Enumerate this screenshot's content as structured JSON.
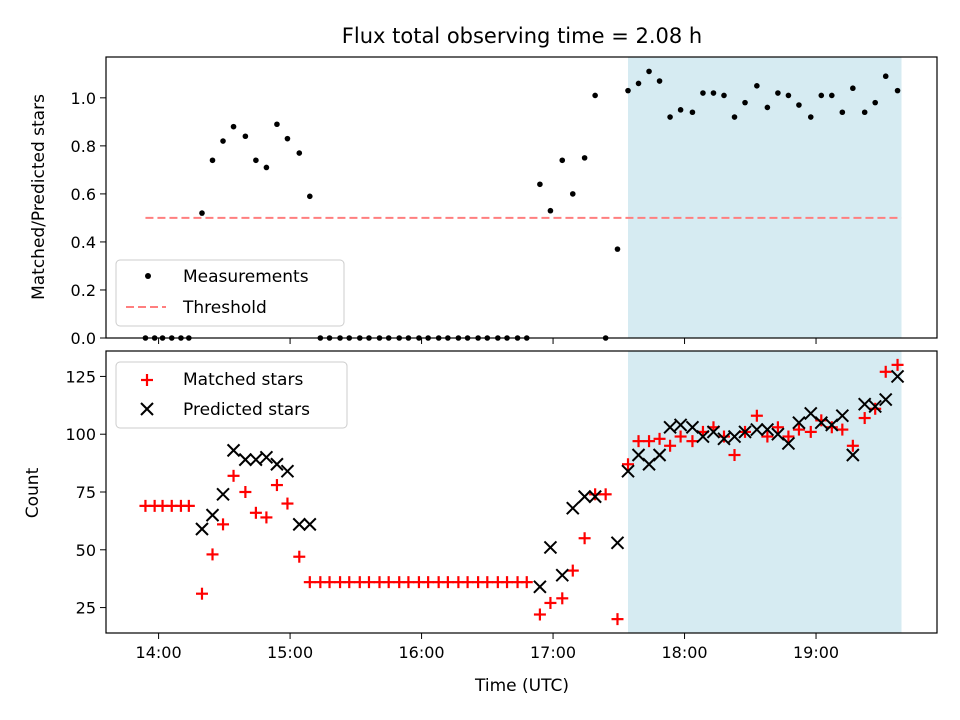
{
  "chart_data": [
    {
      "type": "scatter",
      "title": "Flux total observing time = 2.08 h",
      "xlabel": "",
      "ylabel": "Matched/Predicted stars",
      "ylim": [
        0,
        1.17
      ],
      "xlim_hours": [
        13.6,
        19.92
      ],
      "yticks": [
        "0.0",
        "0.2",
        "0.4",
        "0.6",
        "0.8",
        "1.0"
      ],
      "highlight_span_hours": [
        17.57,
        19.65
      ],
      "highlight_color": "#add8e6",
      "legend": {
        "placement": "lower-left",
        "entries": [
          "Measurements",
          "Threshold"
        ]
      },
      "threshold": {
        "name": "Threshold",
        "value": 0.5,
        "x_range_hours": [
          13.9,
          19.65
        ],
        "color": "#ff7f7f",
        "style": "dashed"
      },
      "series": [
        {
          "name": "Measurements",
          "marker": "dot",
          "color": "#000000",
          "points": [
            [
              13.9,
              0
            ],
            [
              13.97,
              0
            ],
            [
              14.03,
              0
            ],
            [
              14.1,
              0
            ],
            [
              14.17,
              0
            ],
            [
              14.23,
              0
            ],
            [
              14.33,
              0.52
            ],
            [
              14.41,
              0.74
            ],
            [
              14.49,
              0.82
            ],
            [
              14.57,
              0.88
            ],
            [
              14.66,
              0.84
            ],
            [
              14.74,
              0.74
            ],
            [
              14.82,
              0.71
            ],
            [
              14.9,
              0.89
            ],
            [
              14.98,
              0.83
            ],
            [
              15.07,
              0.77
            ],
            [
              15.15,
              0.59
            ],
            [
              15.23,
              0
            ],
            [
              15.3,
              0
            ],
            [
              15.38,
              0
            ],
            [
              15.45,
              0
            ],
            [
              15.53,
              0
            ],
            [
              15.6,
              0
            ],
            [
              15.68,
              0
            ],
            [
              15.75,
              0
            ],
            [
              15.83,
              0
            ],
            [
              15.9,
              0
            ],
            [
              15.98,
              0
            ],
            [
              16.05,
              0
            ],
            [
              16.13,
              0
            ],
            [
              16.2,
              0
            ],
            [
              16.28,
              0
            ],
            [
              16.35,
              0
            ],
            [
              16.43,
              0
            ],
            [
              16.5,
              0
            ],
            [
              16.58,
              0
            ],
            [
              16.65,
              0
            ],
            [
              16.73,
              0
            ],
            [
              16.8,
              0
            ],
            [
              16.9,
              0.64
            ],
            [
              16.98,
              0.53
            ],
            [
              17.07,
              0.74
            ],
            [
              17.15,
              0.6
            ],
            [
              17.24,
              0.75
            ],
            [
              17.32,
              1.01
            ],
            [
              17.4,
              0
            ],
            [
              17.49,
              0.37
            ],
            [
              17.57,
              1.03
            ],
            [
              17.65,
              1.06
            ],
            [
              17.73,
              1.11
            ],
            [
              17.81,
              1.07
            ],
            [
              17.89,
              0.92
            ],
            [
              17.97,
              0.95
            ],
            [
              18.06,
              0.94
            ],
            [
              18.14,
              1.02
            ],
            [
              18.22,
              1.02
            ],
            [
              18.3,
              1.01
            ],
            [
              18.38,
              0.92
            ],
            [
              18.46,
              0.98
            ],
            [
              18.55,
              1.05
            ],
            [
              18.63,
              0.96
            ],
            [
              18.71,
              1.02
            ],
            [
              18.79,
              1.01
            ],
            [
              18.87,
              0.97
            ],
            [
              18.96,
              0.92
            ],
            [
              19.04,
              1.01
            ],
            [
              19.12,
              1.01
            ],
            [
              19.2,
              0.94
            ],
            [
              19.28,
              1.04
            ],
            [
              19.37,
              0.94
            ],
            [
              19.45,
              0.98
            ],
            [
              19.53,
              1.09
            ],
            [
              19.62,
              1.03
            ]
          ]
        }
      ]
    },
    {
      "type": "scatter",
      "title": "",
      "xlabel": "Time (UTC)",
      "ylabel": "Count",
      "ylim": [
        14,
        136
      ],
      "xlim_hours": [
        13.6,
        19.92
      ],
      "yticks": [
        "25",
        "50",
        "75",
        "100",
        "125"
      ],
      "xticks": [
        "14:00",
        "15:00",
        "16:00",
        "17:00",
        "18:00",
        "19:00"
      ],
      "highlight_span_hours": [
        17.57,
        19.65
      ],
      "highlight_color": "#add8e6",
      "legend": {
        "placement": "upper-left",
        "entries": [
          "Matched stars",
          "Predicted stars"
        ]
      },
      "series": [
        {
          "name": "Matched stars",
          "marker": "plus",
          "color": "#ff0000",
          "points": [
            [
              13.9,
              69
            ],
            [
              13.97,
              69
            ],
            [
              14.03,
              69
            ],
            [
              14.1,
              69
            ],
            [
              14.17,
              69
            ],
            [
              14.23,
              69
            ],
            [
              14.33,
              31
            ],
            [
              14.41,
              48
            ],
            [
              14.49,
              61
            ],
            [
              14.57,
              82
            ],
            [
              14.66,
              75
            ],
            [
              14.74,
              66
            ],
            [
              14.82,
              64
            ],
            [
              14.9,
              78
            ],
            [
              14.98,
              70
            ],
            [
              15.07,
              47
            ],
            [
              15.15,
              36
            ],
            [
              15.23,
              36
            ],
            [
              15.3,
              36
            ],
            [
              15.38,
              36
            ],
            [
              15.45,
              36
            ],
            [
              15.53,
              36
            ],
            [
              15.6,
              36
            ],
            [
              15.68,
              36
            ],
            [
              15.75,
              36
            ],
            [
              15.83,
              36
            ],
            [
              15.9,
              36
            ],
            [
              15.98,
              36
            ],
            [
              16.05,
              36
            ],
            [
              16.13,
              36
            ],
            [
              16.2,
              36
            ],
            [
              16.28,
              36
            ],
            [
              16.35,
              36
            ],
            [
              16.43,
              36
            ],
            [
              16.5,
              36
            ],
            [
              16.58,
              36
            ],
            [
              16.65,
              36
            ],
            [
              16.73,
              36
            ],
            [
              16.8,
              36
            ],
            [
              16.9,
              22
            ],
            [
              16.98,
              27
            ],
            [
              17.07,
              29
            ],
            [
              17.15,
              41
            ],
            [
              17.24,
              55
            ],
            [
              17.32,
              74
            ],
            [
              17.4,
              74
            ],
            [
              17.49,
              20
            ],
            [
              17.57,
              87
            ],
            [
              17.65,
              97
            ],
            [
              17.73,
              97
            ],
            [
              17.81,
              98
            ],
            [
              17.89,
              95
            ],
            [
              17.97,
              99
            ],
            [
              18.06,
              97
            ],
            [
              18.14,
              101
            ],
            [
              18.22,
              103
            ],
            [
              18.3,
              99
            ],
            [
              18.38,
              91
            ],
            [
              18.46,
              101
            ],
            [
              18.55,
              108
            ],
            [
              18.63,
              99
            ],
            [
              18.71,
              103
            ],
            [
              18.79,
              99
            ],
            [
              18.87,
              102
            ],
            [
              18.96,
              101
            ],
            [
              19.04,
              106
            ],
            [
              19.12,
              103
            ],
            [
              19.2,
              102
            ],
            [
              19.28,
              95
            ],
            [
              19.37,
              107
            ],
            [
              19.45,
              111
            ],
            [
              19.53,
              127
            ],
            [
              19.62,
              130
            ]
          ]
        },
        {
          "name": "Predicted stars",
          "marker": "x",
          "color": "#000000",
          "points": [
            [
              14.33,
              59
            ],
            [
              14.41,
              65
            ],
            [
              14.49,
              74
            ],
            [
              14.57,
              93
            ],
            [
              14.66,
              89
            ],
            [
              14.74,
              89
            ],
            [
              14.82,
              90
            ],
            [
              14.9,
              87
            ],
            [
              14.98,
              84
            ],
            [
              15.07,
              61
            ],
            [
              15.15,
              61
            ],
            [
              16.9,
              34
            ],
            [
              16.98,
              51
            ],
            [
              17.07,
              39
            ],
            [
              17.15,
              68
            ],
            [
              17.24,
              73
            ],
            [
              17.32,
              73
            ],
            [
              17.49,
              53
            ],
            [
              17.57,
              84
            ],
            [
              17.65,
              91
            ],
            [
              17.73,
              87
            ],
            [
              17.81,
              91
            ],
            [
              17.89,
              103
            ],
            [
              17.97,
              104
            ],
            [
              18.06,
              103
            ],
            [
              18.14,
              99
            ],
            [
              18.22,
              101
            ],
            [
              18.3,
              98
            ],
            [
              18.38,
              99
            ],
            [
              18.46,
              101
            ],
            [
              18.55,
              102
            ],
            [
              18.63,
              102
            ],
            [
              18.71,
              100
            ],
            [
              18.79,
              96
            ],
            [
              18.87,
              105
            ],
            [
              18.96,
              109
            ],
            [
              19.04,
              105
            ],
            [
              19.12,
              104
            ],
            [
              19.2,
              108
            ],
            [
              19.28,
              91
            ],
            [
              19.37,
              113
            ],
            [
              19.45,
              112
            ],
            [
              19.53,
              115
            ],
            [
              19.62,
              125
            ]
          ]
        }
      ]
    }
  ]
}
